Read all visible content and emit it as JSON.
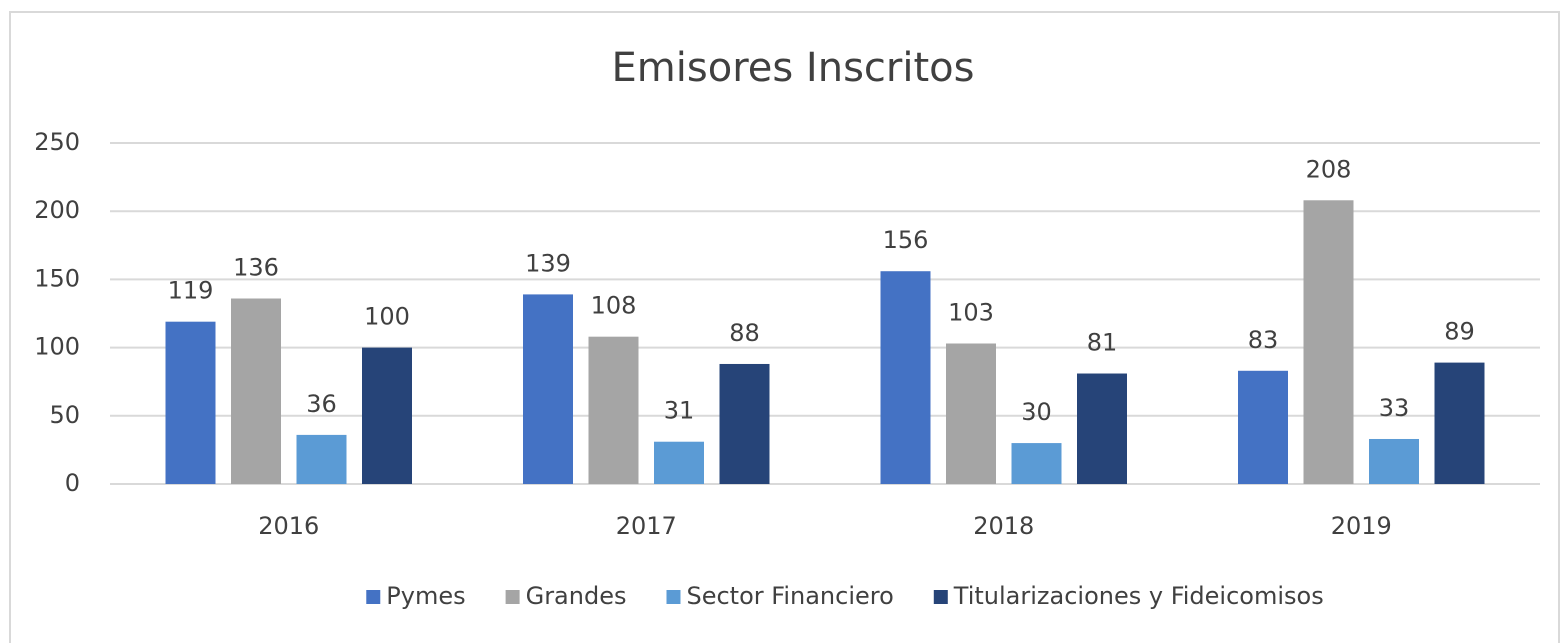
{
  "chart_data": {
    "type": "bar",
    "title": "Emisores Inscritos",
    "categories": [
      "2016",
      "2017",
      "2018",
      "2019"
    ],
    "series": [
      {
        "name": "Pymes",
        "color": "#4472c4",
        "values": [
          119,
          139,
          156,
          83
        ]
      },
      {
        "name": "Grandes",
        "color": "#a5a5a5",
        "values": [
          136,
          108,
          103,
          208
        ]
      },
      {
        "name": "Sector Financiero",
        "color": "#5b9bd5",
        "values": [
          36,
          31,
          30,
          33
        ]
      },
      {
        "name": "Titularizaciones y Fideicomisos",
        "color": "#264478",
        "values": [
          100,
          88,
          81,
          89
        ]
      }
    ],
    "ylim": [
      0,
      250
    ],
    "yticks": [
      0,
      50,
      100,
      150,
      200,
      250
    ],
    "grid": true,
    "legend": "bottom"
  }
}
